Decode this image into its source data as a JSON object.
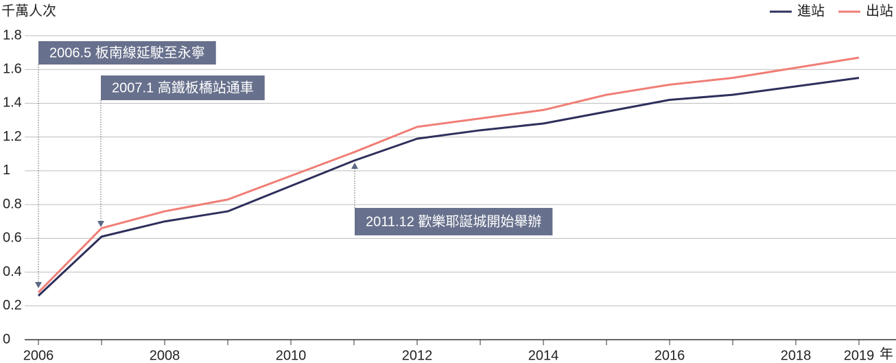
{
  "chart_data": {
    "type": "line",
    "ylabel": "千萬人次",
    "x_unit": "年",
    "x": [
      2006,
      2007,
      2008,
      2009,
      2010,
      2011,
      2012,
      2013,
      2014,
      2015,
      2016,
      2017,
      2018,
      2019
    ],
    "series": [
      {
        "name": "進站",
        "color": "#2e2f5b",
        "values": [
          0.26,
          0.61,
          0.7,
          0.76,
          0.91,
          1.06,
          1.19,
          1.24,
          1.28,
          1.35,
          1.42,
          1.45,
          1.5,
          1.55
        ]
      },
      {
        "name": "出站",
        "color": "#f07e76",
        "values": [
          0.28,
          0.66,
          0.76,
          0.83,
          0.97,
          1.11,
          1.26,
          1.31,
          1.36,
          1.45,
          1.51,
          1.55,
          1.61,
          1.67
        ]
      }
    ],
    "xlim": [
      2006,
      2019
    ],
    "xticks": [
      2006,
      2008,
      2010,
      2012,
      2014,
      2016,
      2018,
      2019
    ],
    "xminor_ticks": [
      2007,
      2009,
      2011,
      2013,
      2015,
      2017
    ],
    "ylim": [
      0,
      1.8
    ],
    "yticks": [
      0,
      0.2,
      0.4,
      0.6,
      0.8,
      1,
      1.2,
      1.4,
      1.6,
      1.8
    ],
    "grid": true,
    "legend": "upper right",
    "annotations": [
      "2006.5 板南線延駛至永寧",
      "2007.1 高鐵板橋站通車",
      "2011.12 歡樂耶誕城開始舉辦"
    ]
  }
}
